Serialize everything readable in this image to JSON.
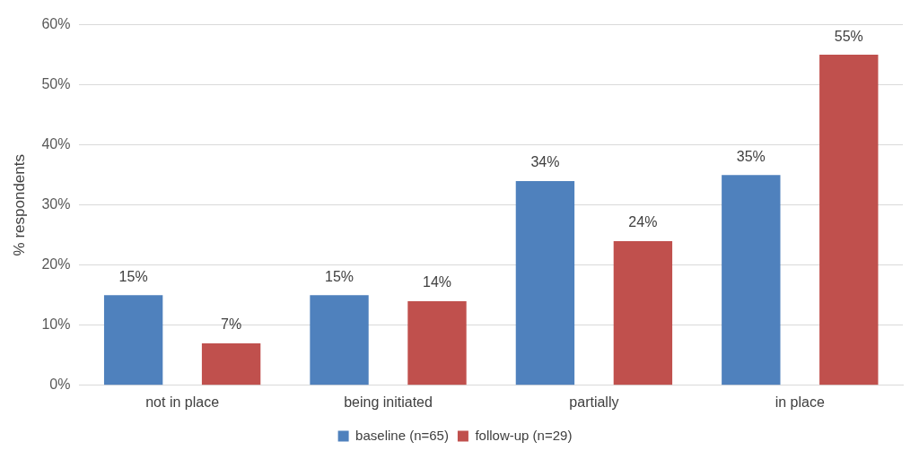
{
  "chart_data": {
    "type": "bar",
    "ylabel": "% respondents",
    "categories": [
      "not in place",
      "being initiated",
      "partially",
      "in place"
    ],
    "series": [
      {
        "name": "baseline (n=65)",
        "color": "#4f81bd",
        "values": [
          15,
          15,
          34,
          35
        ],
        "value_labels": [
          "15%",
          "15%",
          "34%",
          "35%"
        ]
      },
      {
        "name": "follow-up (n=29)",
        "color": "#c0504d",
        "values": [
          7,
          14,
          24,
          55
        ],
        "value_labels": [
          "7%",
          "14%",
          "24%",
          "55%"
        ]
      }
    ],
    "ylim": [
      0,
      60
    ],
    "yticks": [
      {
        "value": 0,
        "label": "0%"
      },
      {
        "value": 10,
        "label": "10%"
      },
      {
        "value": 20,
        "label": "20%"
      },
      {
        "value": 30,
        "label": "30%"
      },
      {
        "value": 40,
        "label": "40%"
      },
      {
        "value": 50,
        "label": "50%"
      },
      {
        "value": 60,
        "label": "60%"
      }
    ],
    "grid": "y",
    "legend": "bottom"
  }
}
